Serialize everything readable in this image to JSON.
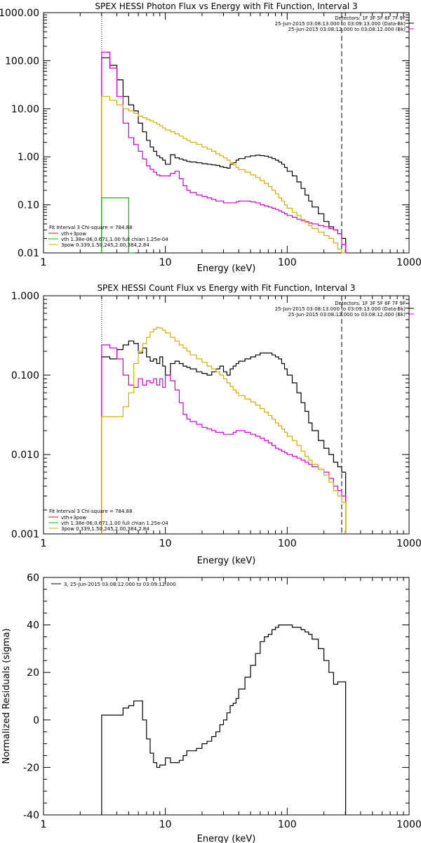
{
  "colors": {
    "data": "#000000",
    "model": "#d000d0",
    "vth": "#00c000",
    "bpow": "#d0b000",
    "thick": "#e01010",
    "background": "#ffffff"
  },
  "chart_data": [
    {
      "type": "line",
      "title": "SPEX HESSI Photon Flux vs Energy with Fit Function, Interval 3",
      "xlabel": "Energy (keV)",
      "ylabel": "",
      "xscale": "log",
      "yscale": "log",
      "xlim": [
        1,
        1000
      ],
      "ylim": [
        0.01,
        1000
      ],
      "xticks": [
        1,
        10,
        100,
        1000
      ],
      "xtick_labels": [
        "1",
        "10",
        "100",
        "1000"
      ],
      "yticks": [
        0.01,
        0.1,
        1,
        10,
        100,
        1000
      ],
      "ytick_labels": [
        "0.01",
        "0.10",
        "1.00",
        "10.00",
        "100.00",
        "1000.00"
      ],
      "markers": [
        3,
        280
      ],
      "header": [
        "Detectors: 1F 3F 5F 6F 7F 9F",
        "25-Jun-2015 03:08:13.000 to 03:09:13.000 (Data-Bk)",
        "25-Jun-2015 03:08:12.000 to 03:08:12.000 (Bk)"
      ],
      "legend_title": "Fit Interval 3   Chi-square = 784.88",
      "legend": [
        "vth+3pow",
        "vth 1.38e-06,0.671,1.00  full chian 1.25e-04",
        "3pow 0.339,1.50,245,2.00,384,2.84"
      ],
      "series": [
        {
          "name": "Data-Bk",
          "color": "black",
          "x": [
            3,
            3.5,
            4,
            4.5,
            5,
            5.5,
            6,
            6.5,
            7,
            7.5,
            8,
            8.5,
            9,
            9.5,
            10,
            11,
            12,
            13,
            14,
            15,
            16,
            18,
            20,
            22,
            24,
            26,
            28,
            30,
            32,
            34,
            36,
            38,
            40,
            45,
            50,
            55,
            60,
            65,
            70,
            75,
            80,
            85,
            90,
            95,
            100,
            110,
            120,
            130,
            140,
            150,
            160,
            180,
            200,
            220,
            240,
            260,
            280
          ],
          "y": [
            115,
            80,
            40,
            18,
            12,
            9,
            5,
            3.3,
            2.2,
            1.6,
            1.3,
            1.05,
            0.95,
            0.85,
            0.7,
            1.1,
            0.95,
            0.9,
            0.85,
            0.8,
            0.78,
            0.75,
            0.72,
            0.7,
            0.68,
            0.66,
            0.62,
            0.6,
            0.58,
            0.7,
            0.75,
            0.85,
            0.92,
            1.0,
            1.05,
            1.08,
            1.06,
            1.03,
            0.98,
            0.92,
            0.85,
            0.78,
            0.7,
            0.6,
            0.5,
            0.4,
            0.3,
            0.22,
            0.16,
            0.12,
            0.09,
            0.065,
            0.045,
            0.035,
            0.03,
            0.025,
            0.02
          ]
        },
        {
          "name": "vth+3pow",
          "color": "magenta",
          "x": [
            3,
            3.5,
            4,
            4.5,
            5,
            5.5,
            6,
            6.5,
            7,
            7.5,
            8,
            8.5,
            9,
            9.5,
            10,
            11,
            12,
            13,
            14,
            15,
            16,
            18,
            20,
            22,
            24,
            26,
            28,
            30,
            32,
            34,
            36,
            38,
            40,
            45,
            50,
            55,
            60,
            65,
            70,
            75,
            80,
            85,
            90,
            95,
            100,
            110,
            120,
            130,
            140,
            150,
            160,
            180,
            200,
            220,
            240,
            260,
            280
          ],
          "y": [
            150,
            70,
            18,
            5,
            2.5,
            1.8,
            1.3,
            0.9,
            0.65,
            0.55,
            0.48,
            0.42,
            0.4,
            0.4,
            0.4,
            0.45,
            0.5,
            0.35,
            0.25,
            0.2,
            0.18,
            0.16,
            0.15,
            0.14,
            0.13,
            0.12,
            0.12,
            0.11,
            0.11,
            0.11,
            0.11,
            0.115,
            0.12,
            0.12,
            0.115,
            0.11,
            0.1,
            0.095,
            0.09,
            0.085,
            0.08,
            0.075,
            0.07,
            0.065,
            0.06,
            0.055,
            0.05,
            0.047,
            0.045,
            0.042,
            0.04,
            0.037,
            0.035,
            0.032,
            0.03,
            0.025,
            0.015
          ]
        },
        {
          "name": "3pow",
          "color": "yellow",
          "x": [
            3,
            3.5,
            4,
            4.5,
            5,
            5.5,
            6,
            6.5,
            7,
            7.5,
            8,
            8.5,
            9,
            9.5,
            10,
            11,
            12,
            13,
            14,
            15,
            16,
            18,
            20,
            22,
            24,
            26,
            28,
            30,
            32,
            34,
            36,
            38,
            40,
            45,
            50,
            55,
            60,
            65,
            70,
            75,
            80,
            85,
            90,
            95,
            100,
            110,
            120,
            130,
            140,
            150,
            160,
            180,
            200,
            220,
            240,
            260,
            280
          ],
          "y": [
            18,
            15,
            12,
            10,
            9,
            8,
            7,
            6.5,
            6,
            5.6,
            5.2,
            4.8,
            4.4,
            4.0,
            3.6,
            3.3,
            3.0,
            2.7,
            2.4,
            2.2,
            2.0,
            1.8,
            1.6,
            1.45,
            1.3,
            1.15,
            1.05,
            0.95,
            0.85,
            0.75,
            0.68,
            0.6,
            0.54,
            0.48,
            0.42,
            0.37,
            0.32,
            0.28,
            0.24,
            0.2,
            0.17,
            0.14,
            0.12,
            0.1,
            0.085,
            0.07,
            0.06,
            0.05,
            0.043,
            0.037,
            0.032,
            0.027,
            0.023,
            0.02,
            0.016,
            0.012,
            0.01
          ]
        },
        {
          "name": "vth",
          "color": "green",
          "x": [
            3,
            3.5,
            4,
            4.5,
            5
          ],
          "y": [
            0.14,
            0.14,
            0.14,
            0.14,
            0.01
          ]
        }
      ]
    },
    {
      "type": "line",
      "title": "SPEX HESSI Count Flux vs Energy with Fit Function, Interval 3",
      "xlabel": "Energy (keV)",
      "ylabel": "",
      "xscale": "log",
      "yscale": "log",
      "xlim": [
        1,
        1000
      ],
      "ylim": [
        0.001,
        1
      ],
      "xticks": [
        1,
        10,
        100,
        1000
      ],
      "xtick_labels": [
        "1",
        "10",
        "100",
        "1000"
      ],
      "yticks": [
        0.001,
        0.01,
        0.1,
        1
      ],
      "ytick_labels": [
        "0.001",
        "0.010",
        "0.100",
        "1.000"
      ],
      "markers": [
        3,
        280
      ],
      "header": [
        "Detectors: 1F 3F 5F 6F 7F 9F",
        "25-Jun-2015 03:08:13.000 to 03:09:13.000 (Data-Bk)",
        "25-Jun-2015 03:08:12.000 to 03:08:12.000 (Bk)"
      ],
      "legend_title": "Fit Interval 3   Chi-square = 784.88",
      "legend": [
        "vth+3pow",
        "vth 1.38e-06,0.671,1.00  full chian 1.25e-04",
        "3pow 0.339,1.50,245,2.00,384,2.84"
      ],
      "series": [
        {
          "name": "Data-Bk",
          "color": "black",
          "x": [
            3,
            3.5,
            4,
            4.5,
            5,
            5.5,
            6,
            6.5,
            7,
            7.5,
            8,
            8.5,
            9,
            9.5,
            10,
            11,
            12,
            13,
            14,
            15,
            16,
            18,
            20,
            22,
            24,
            26,
            28,
            30,
            32,
            34,
            36,
            38,
            40,
            45,
            50,
            55,
            60,
            65,
            70,
            75,
            80,
            85,
            90,
            95,
            100,
            110,
            120,
            130,
            140,
            150,
            160,
            180,
            200,
            220,
            240,
            260,
            280
          ],
          "y": [
            0.17,
            0.16,
            0.21,
            0.24,
            0.27,
            0.25,
            0.19,
            0.22,
            0.17,
            0.15,
            0.16,
            0.14,
            0.17,
            0.13,
            0.1,
            0.14,
            0.15,
            0.14,
            0.13,
            0.125,
            0.12,
            0.11,
            0.105,
            0.1,
            0.11,
            0.12,
            0.13,
            0.11,
            0.1,
            0.12,
            0.13,
            0.14,
            0.15,
            0.16,
            0.17,
            0.18,
            0.19,
            0.19,
            0.19,
            0.18,
            0.17,
            0.16,
            0.14,
            0.12,
            0.1,
            0.08,
            0.06,
            0.045,
            0.035,
            0.025,
            0.02,
            0.015,
            0.012,
            0.01,
            0.008,
            0.007,
            0.006
          ]
        },
        {
          "name": "vth+3pow",
          "color": "magenta",
          "x": [
            3,
            3.5,
            4,
            4.5,
            5,
            5.5,
            6,
            6.5,
            7,
            7.5,
            8,
            8.5,
            9,
            9.5,
            10,
            11,
            12,
            13,
            14,
            15,
            16,
            18,
            20,
            22,
            24,
            26,
            28,
            30,
            32,
            34,
            36,
            38,
            40,
            45,
            50,
            55,
            60,
            65,
            70,
            75,
            80,
            85,
            90,
            95,
            100,
            110,
            120,
            130,
            140,
            150,
            160,
            180,
            200,
            220,
            240,
            260,
            280
          ],
          "y": [
            0.24,
            0.22,
            0.16,
            0.1,
            0.075,
            0.07,
            0.09,
            0.075,
            0.085,
            0.08,
            0.09,
            0.075,
            0.09,
            0.07,
            0.1,
            0.085,
            0.065,
            0.045,
            0.032,
            0.028,
            0.026,
            0.024,
            0.022,
            0.021,
            0.02,
            0.019,
            0.019,
            0.018,
            0.018,
            0.018,
            0.019,
            0.02,
            0.02,
            0.019,
            0.018,
            0.017,
            0.016,
            0.015,
            0.014,
            0.013,
            0.012,
            0.0115,
            0.011,
            0.0105,
            0.01,
            0.0095,
            0.009,
            0.0085,
            0.008,
            0.0075,
            0.007,
            0.0065,
            0.006,
            0.005,
            0.004,
            0.0035,
            0.003
          ]
        },
        {
          "name": "3pow",
          "color": "yellow",
          "x": [
            3,
            3.5,
            4,
            4.5,
            5,
            5.5,
            6,
            6.5,
            7,
            7.5,
            8,
            8.5,
            9,
            9.5,
            10,
            11,
            12,
            13,
            14,
            15,
            16,
            18,
            20,
            22,
            24,
            26,
            28,
            30,
            32,
            34,
            36,
            38,
            40,
            45,
            50,
            55,
            60,
            65,
            70,
            75,
            80,
            85,
            90,
            95,
            100,
            110,
            120,
            130,
            140,
            150,
            160,
            180,
            200,
            220,
            240,
            260,
            280
          ],
          "y": [
            0.03,
            0.03,
            0.03,
            0.04,
            0.06,
            0.14,
            0.2,
            0.25,
            0.3,
            0.35,
            0.38,
            0.4,
            0.39,
            0.37,
            0.34,
            0.3,
            0.27,
            0.24,
            0.22,
            0.2,
            0.18,
            0.16,
            0.145,
            0.13,
            0.12,
            0.11,
            0.1,
            0.09,
            0.08,
            0.072,
            0.065,
            0.06,
            0.055,
            0.05,
            0.046,
            0.042,
            0.038,
            0.034,
            0.031,
            0.028,
            0.025,
            0.023,
            0.021,
            0.019,
            0.017,
            0.015,
            0.013,
            0.011,
            0.0095,
            0.0085,
            0.0075,
            0.0065,
            0.0055,
            0.0045,
            0.0035,
            0.003,
            0.0025
          ]
        }
      ]
    },
    {
      "type": "line",
      "title": "",
      "xlabel": "Energy (keV)",
      "ylabel": "Normalized Residuals (sigma)",
      "xscale": "log",
      "yscale": "linear",
      "xlim": [
        1,
        1000
      ],
      "ylim": [
        -40,
        60
      ],
      "xticks": [
        1,
        10,
        100,
        1000
      ],
      "xtick_labels": [
        "1",
        "10",
        "100",
        "1000"
      ],
      "yticks": [
        -40,
        -20,
        0,
        20,
        40,
        60
      ],
      "ytick_labels": [
        "-40",
        "-20",
        "0",
        "20",
        "40",
        "60"
      ],
      "legend": [
        "3, 25-Jun-2015 03:08:12.000 to 03:09:12.000"
      ],
      "series": [
        {
          "name": "3, 25-Jun-2015 03:08:12.000 to 03:09:12.000",
          "color": "black",
          "x": [
            3,
            3.5,
            4,
            4.5,
            5,
            5.5,
            6,
            6.5,
            7,
            7.5,
            8,
            8.5,
            9,
            9.5,
            10,
            11,
            12,
            13,
            14,
            15,
            16,
            18,
            20,
            22,
            24,
            26,
            28,
            30,
            32,
            34,
            36,
            38,
            40,
            45,
            50,
            55,
            60,
            65,
            70,
            75,
            80,
            85,
            90,
            95,
            100,
            110,
            120,
            130,
            140,
            150,
            160,
            180,
            200,
            220,
            240,
            260,
            280
          ],
          "y": [
            2,
            2,
            2,
            5,
            6,
            8,
            8,
            0,
            -8,
            -14,
            -18,
            -20,
            -19,
            -19,
            -16,
            -18,
            -18,
            -17,
            -15,
            -13,
            -13,
            -12,
            -10,
            -9,
            -7,
            -5,
            -2,
            0,
            3,
            6,
            7,
            9,
            13,
            18,
            23,
            28,
            33,
            35,
            36,
            38,
            39,
            40,
            40,
            40,
            40,
            39,
            39,
            38,
            37,
            36,
            34,
            30,
            25,
            20,
            15,
            16,
            16
          ]
        }
      ]
    }
  ]
}
